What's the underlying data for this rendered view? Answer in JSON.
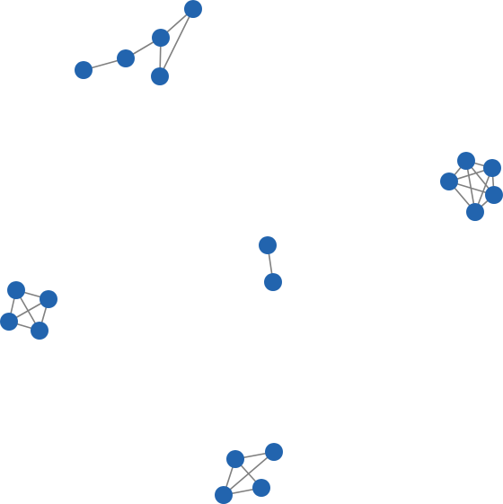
{
  "graph": {
    "type": "network",
    "directed": false,
    "colors": {
      "node": "#2264ae",
      "edge": "#808080",
      "background": "#ffffff"
    },
    "components": [
      {
        "name": "component-triangle-with-tails",
        "nodes": [
          "a1",
          "a2",
          "a3",
          "a4",
          "a5"
        ],
        "edges": [
          [
            "a1",
            "a2"
          ],
          [
            "a2",
            "a3"
          ],
          [
            "a3",
            "a4"
          ],
          [
            "a3",
            "a5"
          ],
          [
            "a4",
            "a5"
          ]
        ]
      },
      {
        "name": "component-five-clique",
        "nodes": [
          "b1",
          "b2",
          "b3",
          "b4",
          "b5"
        ],
        "edges": [
          [
            "b1",
            "b2"
          ],
          [
            "b1",
            "b3"
          ],
          [
            "b1",
            "b4"
          ],
          [
            "b1",
            "b5"
          ],
          [
            "b2",
            "b3"
          ],
          [
            "b2",
            "b4"
          ],
          [
            "b2",
            "b5"
          ],
          [
            "b3",
            "b4"
          ],
          [
            "b3",
            "b5"
          ],
          [
            "b4",
            "b5"
          ]
        ]
      },
      {
        "name": "component-single-edge",
        "nodes": [
          "c1",
          "c2"
        ],
        "edges": [
          [
            "c1",
            "c2"
          ]
        ]
      },
      {
        "name": "component-four-clique",
        "nodes": [
          "d1",
          "d2",
          "d3",
          "d4"
        ],
        "edges": [
          [
            "d1",
            "d2"
          ],
          [
            "d1",
            "d3"
          ],
          [
            "d1",
            "d4"
          ],
          [
            "d2",
            "d3"
          ],
          [
            "d2",
            "d4"
          ],
          [
            "d3",
            "d4"
          ]
        ]
      },
      {
        "name": "component-diamond",
        "nodes": [
          "e1",
          "e2",
          "e3",
          "e4"
        ],
        "edges": [
          [
            "e1",
            "e2"
          ],
          [
            "e1",
            "e3"
          ],
          [
            "e1",
            "e4"
          ],
          [
            "e2",
            "e3"
          ],
          [
            "e3",
            "e4"
          ]
        ]
      }
    ]
  }
}
